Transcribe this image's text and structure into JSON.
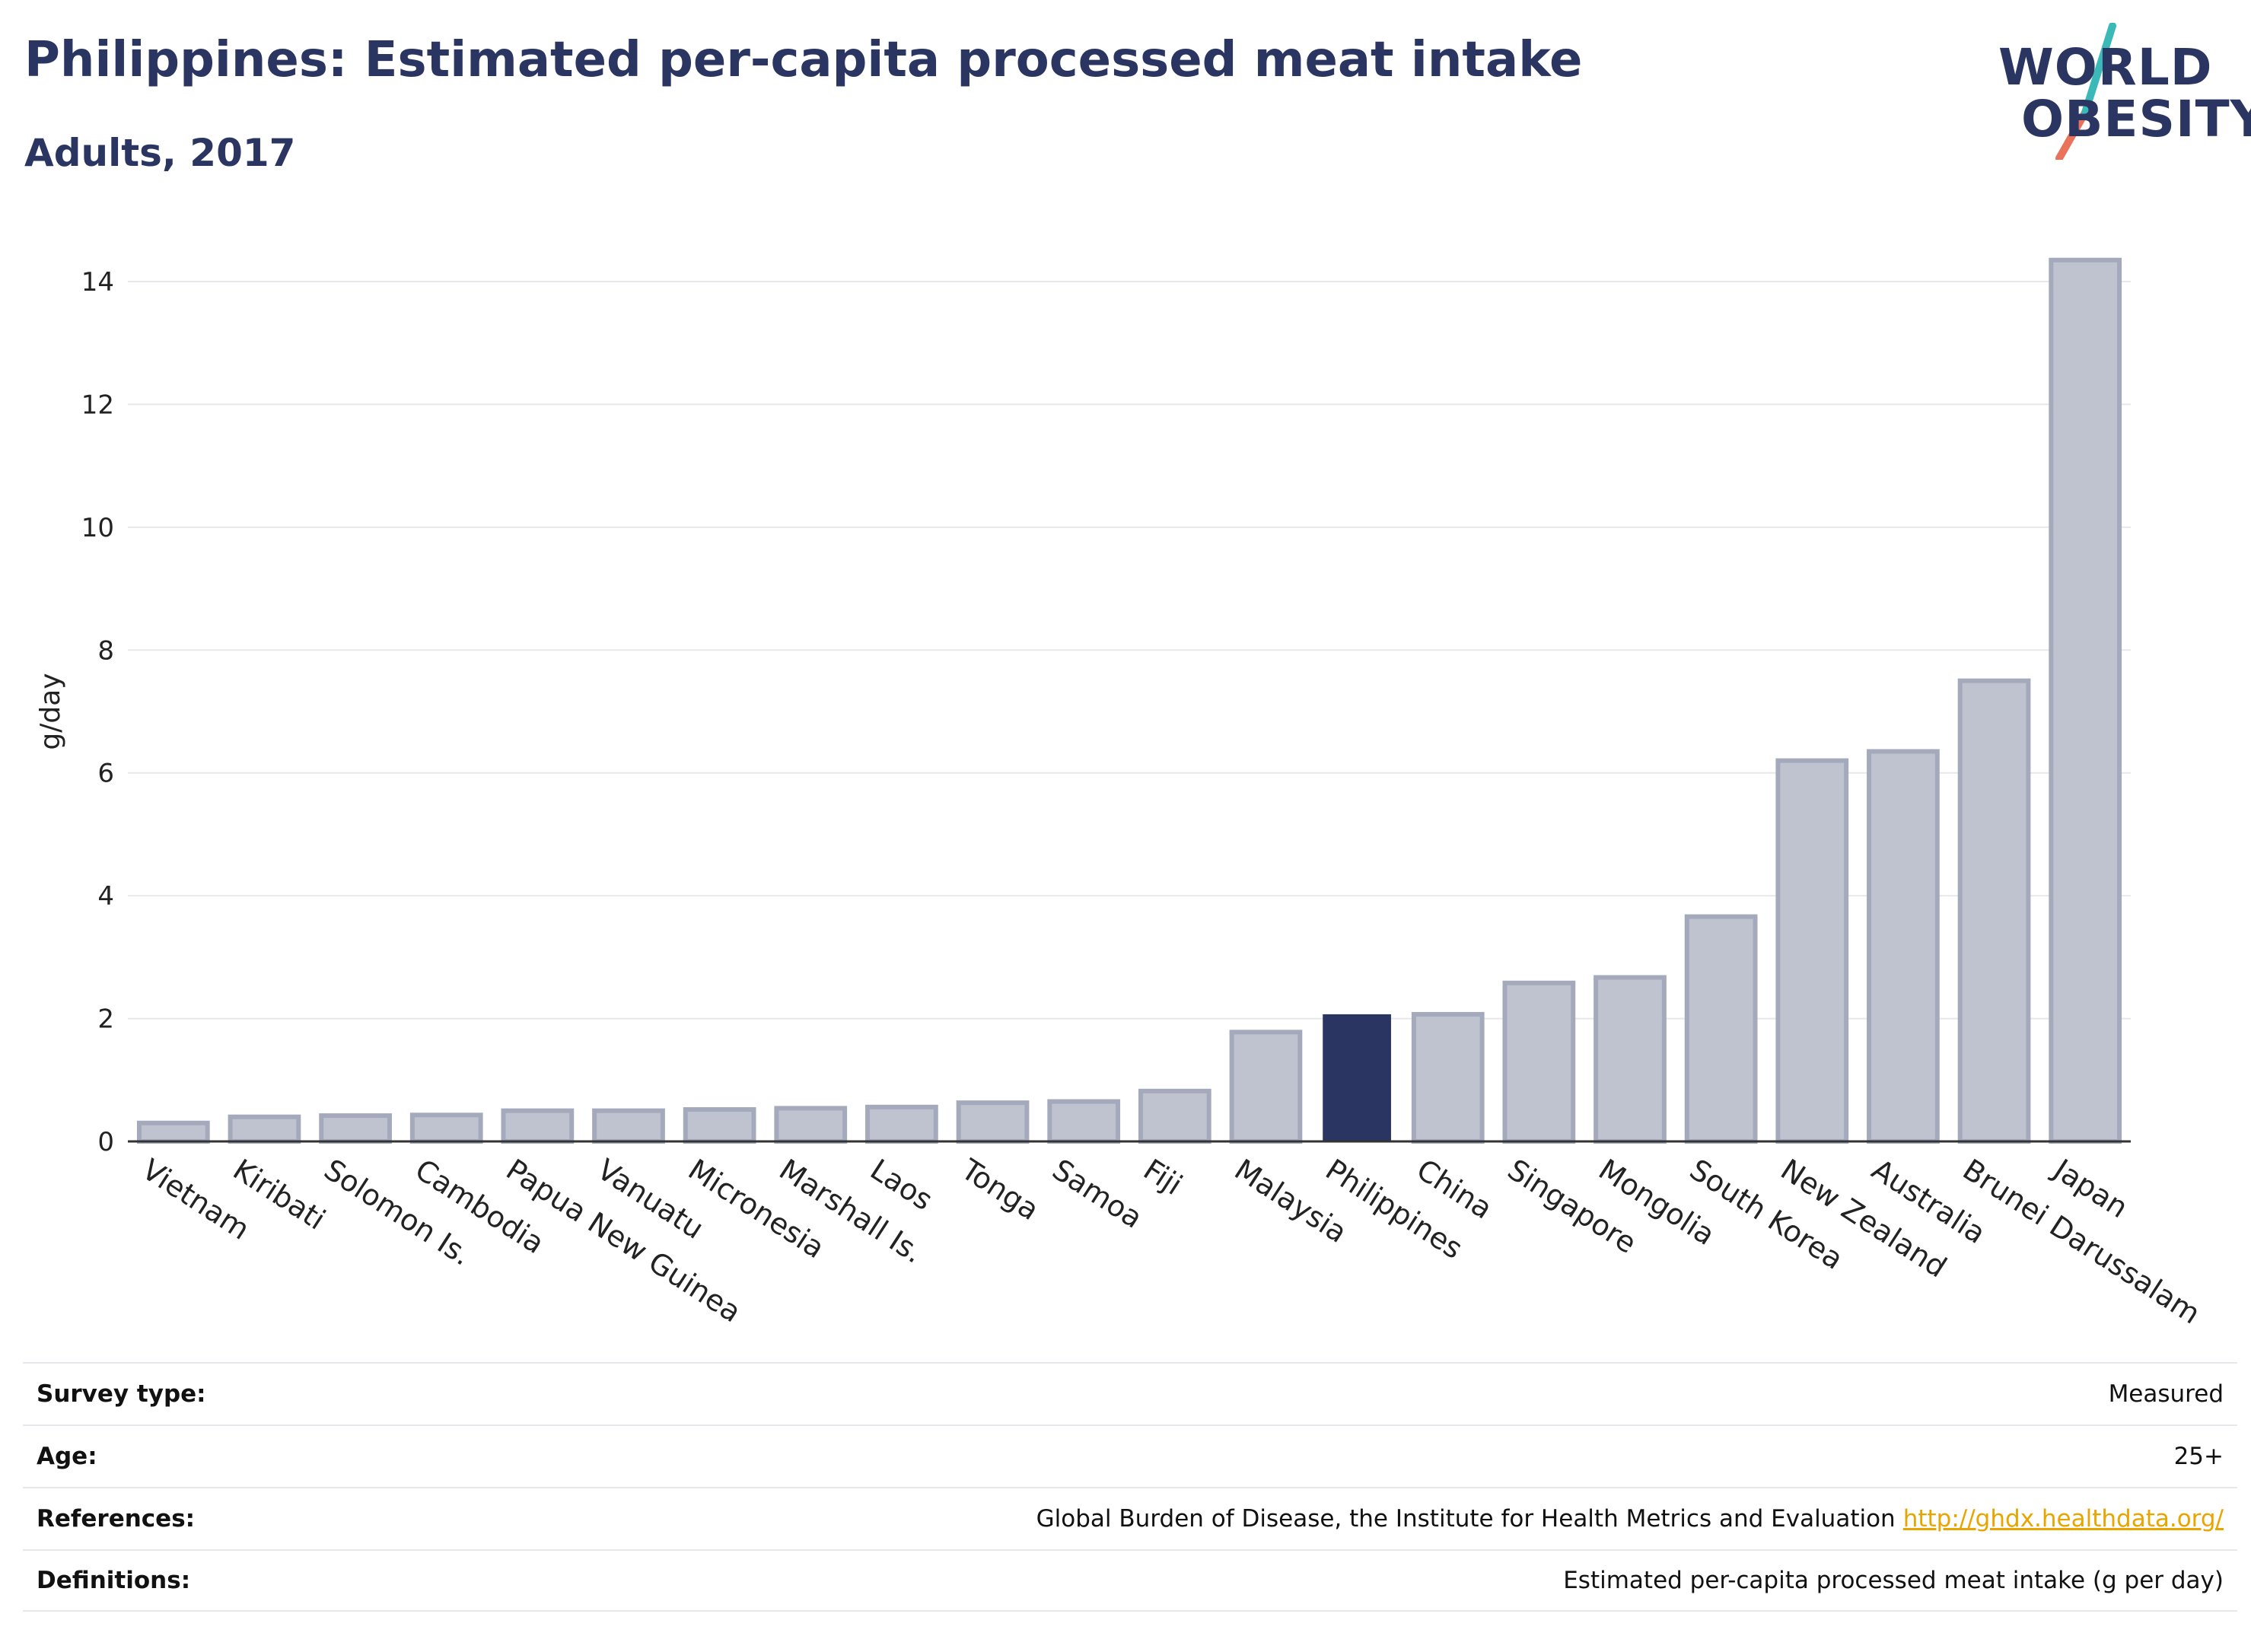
{
  "header": {
    "title": "Philippines: Estimated per-capita processed meat intake",
    "subtitle": "Adults, 2017"
  },
  "logo": {
    "line1": "WORLD",
    "line2": "OBESITY"
  },
  "colors": {
    "highlight": "#2a3561",
    "bar": "#bfc3d0",
    "bar_stroke": "#a4a9bc",
    "grid": "#e6e8ec",
    "text": "#222222",
    "link": "#e8a500",
    "logo_teal": "#3bb8b8",
    "logo_coral": "#e8735a"
  },
  "chart_data": {
    "type": "bar",
    "title": "",
    "xlabel": "",
    "ylabel": "g/day",
    "ylim": [
      0,
      14
    ],
    "yticks": [
      0,
      2,
      4,
      6,
      8,
      10,
      12,
      14
    ],
    "grid": true,
    "highlight": "Philippines",
    "categories": [
      "Vietnam",
      "Kiribati",
      "Solomon Is.",
      "Cambodia",
      "Papua New Guinea",
      "Vanuatu",
      "Micronesia",
      "Marshall Is.",
      "Laos",
      "Tonga",
      "Samoa",
      "Fiji",
      "Malaysia",
      "Philippines",
      "China",
      "Singapore",
      "Mongolia",
      "South Korea",
      "New Zealand",
      "Australia",
      "Brunei Darussalam",
      "Japan"
    ],
    "values": [
      0.3,
      0.4,
      0.42,
      0.43,
      0.5,
      0.5,
      0.52,
      0.54,
      0.56,
      0.63,
      0.65,
      0.82,
      1.78,
      2.07,
      2.07,
      2.58,
      2.67,
      3.66,
      6.2,
      6.35,
      7.5,
      14.35
    ]
  },
  "info": {
    "rows": [
      {
        "label": "Survey type:",
        "value": "Measured"
      },
      {
        "label": "Age:",
        "value": "25+"
      },
      {
        "label": "References:",
        "value": "Global Burden of Disease, the Institute for Health Metrics and Evaluation",
        "link": "http://ghdx.healthdata.org/"
      },
      {
        "label": "Definitions:",
        "value": "Estimated per-capita processed meat intake (g per day)"
      }
    ]
  }
}
